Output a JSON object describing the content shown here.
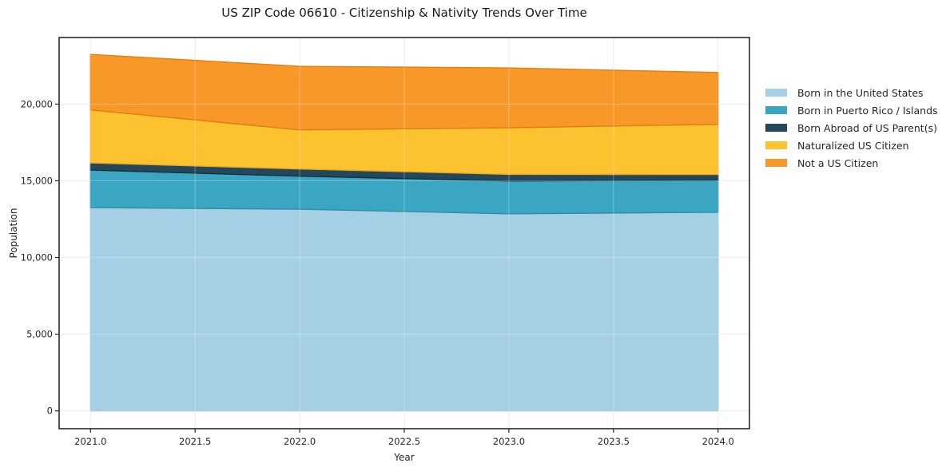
{
  "figure": {
    "background": "#FFFFFF",
    "border_color": "#1A1A1A",
    "grid_color": "#E7E7E7",
    "tick_color": "#262626",
    "title_color": "#1A1A1A"
  },
  "chart_data": {
    "type": "area",
    "stacked": true,
    "title": "US ZIP Code 06610 - Citizenship & Nativity Trends Over Time",
    "xlabel": "Year",
    "ylabel": "Population",
    "x": [
      2021,
      2022,
      2023,
      2024
    ],
    "series": [
      {
        "name": "Born in the United States",
        "color": "#A4CFE4",
        "edge": "#8FBFDA",
        "values": [
          13250,
          13150,
          12850,
          12950
        ]
      },
      {
        "name": "Born in Puerto Rico / Islands",
        "color": "#3BA6C2",
        "edge": "#2C8FA9",
        "values": [
          2450,
          2150,
          2140,
          2090
        ]
      },
      {
        "name": "Born Abroad of US Parent(s)",
        "color": "#24475A",
        "edge": "#14303F",
        "values": [
          470,
          470,
          430,
          370
        ]
      },
      {
        "name": "Naturalized US Citizen",
        "color": "#FCC22F",
        "edge": "#EDAA1E",
        "values": [
          3450,
          2550,
          3040,
          3270
        ]
      },
      {
        "name": "Not a US Citizen",
        "color": "#F89828",
        "edge": "#E07F17",
        "values": [
          3620,
          4140,
          3900,
          3380
        ]
      }
    ],
    "x_ticks": [
      2021.0,
      2021.5,
      2022.0,
      2022.5,
      2023.0,
      2023.5,
      2024.0
    ],
    "x_tick_labels": [
      "2021.0",
      "2021.5",
      "2022.0",
      "2022.5",
      "2023.0",
      "2023.5",
      "2024.0"
    ],
    "y_ticks": [
      0,
      5000,
      10000,
      15000,
      20000
    ],
    "y_tick_labels": [
      "0",
      "5,000",
      "10,000",
      "15,000",
      "20,000"
    ],
    "xlim": [
      2020.85,
      2024.15
    ],
    "ylim": [
      -1160,
      24340
    ],
    "grid": true,
    "legend_position": "outside-right"
  }
}
